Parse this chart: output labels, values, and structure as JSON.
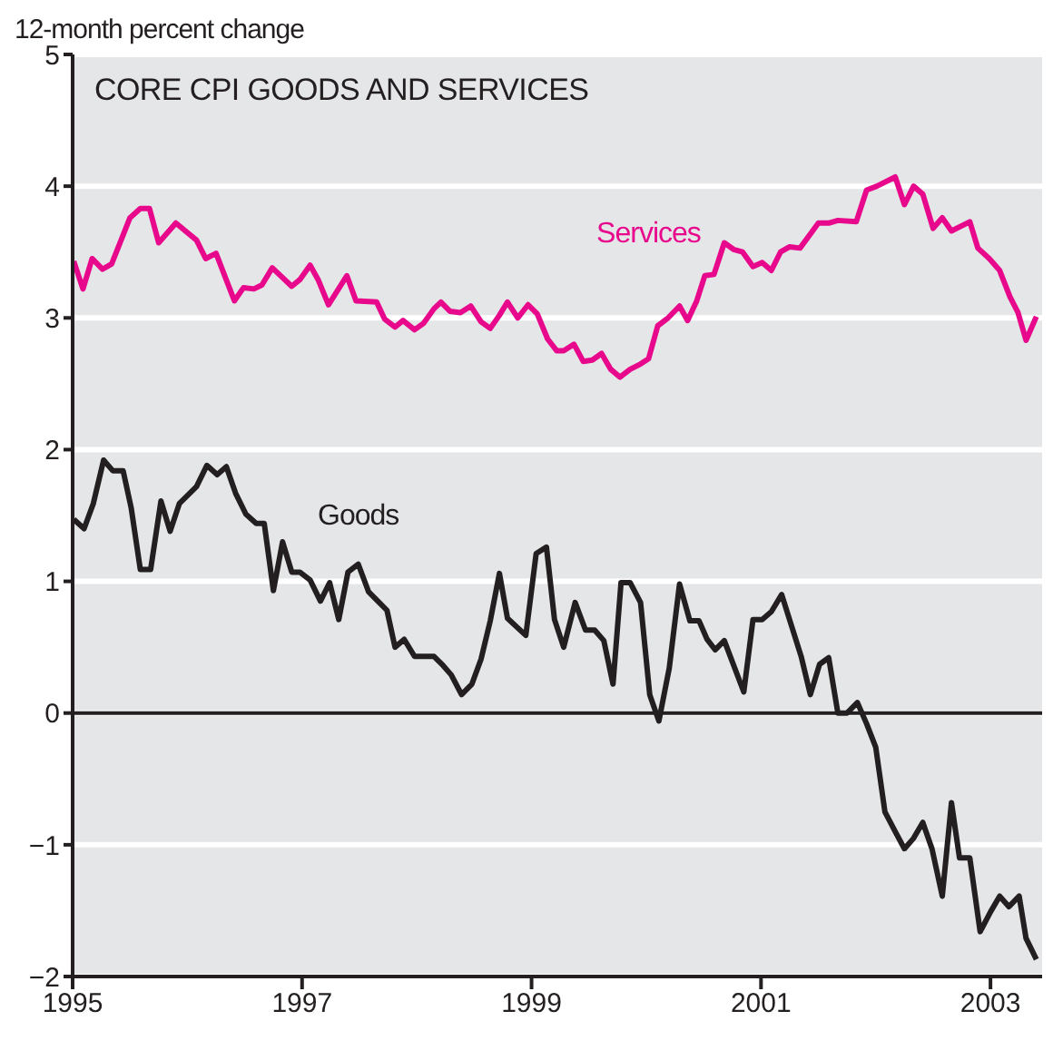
{
  "chart_data": {
    "type": "line",
    "title": "CORE CPI GOODS AND SERVICES",
    "ylabel": "12-month percent change",
    "xlim": [
      1995,
      2003.45
    ],
    "xticks": [
      1995,
      1997,
      1999,
      2001,
      2003
    ],
    "ylim": [
      -2,
      5
    ],
    "yticks": [
      -2,
      -1,
      0,
      1,
      2,
      3,
      4,
      5
    ],
    "grid": "y",
    "marker": "none",
    "line_style": "solid",
    "ref_lines": [
      {
        "axis": "y",
        "value": 0,
        "color": "#231f20"
      }
    ],
    "series": [
      {
        "name": "Services",
        "color": "#e8088c",
        "x": [
          1995.01,
          1995.09,
          1995.17,
          1995.26,
          1995.34,
          1995.5,
          1995.59,
          1995.67,
          1995.75,
          1995.9,
          1996.08,
          1996.16,
          1996.25,
          1996.41,
          1996.49,
          1996.58,
          1996.65,
          1996.74,
          1996.91,
          1996.98,
          1997.07,
          1997.14,
          1997.23,
          1997.39,
          1997.47,
          1997.65,
          1997.72,
          1997.81,
          1997.88,
          1997.98,
          1998.06,
          1998.15,
          1998.21,
          1998.29,
          1998.38,
          1998.47,
          1998.56,
          1998.64,
          1998.72,
          1998.79,
          1998.88,
          1998.97,
          1999.05,
          1999.14,
          1999.22,
          1999.28,
          1999.37,
          1999.45,
          1999.53,
          1999.61,
          1999.69,
          1999.77,
          1999.86,
          1999.95,
          2000.02,
          2000.1,
          2000.19,
          2000.29,
          2000.36,
          2000.44,
          2000.51,
          2000.59,
          2000.68,
          2000.76,
          2000.84,
          2000.93,
          2001.01,
          2001.09,
          2001.17,
          2001.25,
          2001.34,
          2001.5,
          2001.59,
          2001.67,
          2001.83,
          2001.92,
          2002.01,
          2002.17,
          2002.25,
          2002.33,
          2002.41,
          2002.5,
          2002.58,
          2002.66,
          2002.82,
          2002.89,
          2002.99,
          2003.08,
          2003.17,
          2003.24,
          2003.31,
          2003.4
        ],
        "values": [
          3.43,
          3.22,
          3.45,
          3.37,
          3.41,
          3.76,
          3.83,
          3.83,
          3.57,
          3.72,
          3.59,
          3.45,
          3.49,
          3.13,
          3.23,
          3.22,
          3.25,
          3.38,
          3.24,
          3.29,
          3.4,
          3.29,
          3.1,
          3.32,
          3.13,
          3.12,
          2.99,
          2.93,
          2.98,
          2.91,
          2.96,
          3.07,
          3.12,
          3.05,
          3.04,
          3.09,
          2.97,
          2.92,
          3.02,
          3.12,
          3,
          3.1,
          3.03,
          2.84,
          2.75,
          2.75,
          2.8,
          2.67,
          2.68,
          2.73,
          2.61,
          2.55,
          2.61,
          2.65,
          2.69,
          2.94,
          3,
          3.09,
          2.98,
          3.13,
          3.32,
          3.33,
          3.57,
          3.52,
          3.5,
          3.39,
          3.42,
          3.36,
          3.5,
          3.54,
          3.53,
          3.72,
          3.72,
          3.74,
          3.73,
          3.97,
          4,
          4.07,
          3.86,
          4,
          3.94,
          3.68,
          3.76,
          3.66,
          3.73,
          3.53,
          3.45,
          3.36,
          3.16,
          3.04,
          2.83,
          3.01
        ]
      },
      {
        "name": "Goods",
        "color": "#231f20",
        "x": [
          1995.01,
          1995.1,
          1995.18,
          1995.27,
          1995.35,
          1995.44,
          1995.51,
          1995.59,
          1995.68,
          1995.77,
          1995.85,
          1995.93,
          1996.08,
          1996.17,
          1996.26,
          1996.34,
          1996.42,
          1996.51,
          1996.6,
          1996.67,
          1996.75,
          1996.83,
          1996.91,
          1996.98,
          1997.07,
          1997.16,
          1997.24,
          1997.32,
          1997.4,
          1997.49,
          1997.58,
          1997.66,
          1997.74,
          1997.81,
          1997.89,
          1997.98,
          1998.15,
          1998.23,
          1998.3,
          1998.39,
          1998.48,
          1998.56,
          1998.64,
          1998.72,
          1998.79,
          1998.95,
          1999.04,
          1999.13,
          1999.2,
          1999.28,
          1999.38,
          1999.47,
          1999.55,
          1999.63,
          1999.71,
          1999.78,
          1999.86,
          1999.95,
          2000.03,
          2000.11,
          2000.2,
          2000.29,
          2000.38,
          2000.46,
          2000.53,
          2000.6,
          2000.68,
          2000.85,
          2000.93,
          2001.01,
          2001.09,
          2001.18,
          2001.35,
          2001.43,
          2001.51,
          2001.59,
          2001.67,
          2001.75,
          2001.84,
          2001.92,
          2002,
          2002.08,
          2002.17,
          2002.25,
          2002.33,
          2002.41,
          2002.49,
          2002.58,
          2002.66,
          2002.73,
          2002.82,
          2002.91,
          2003,
          2003.08,
          2003.16,
          2003.25,
          2003.31,
          2003.4
        ],
        "values": [
          1.47,
          1.4,
          1.59,
          1.92,
          1.84,
          1.84,
          1.56,
          1.09,
          1.09,
          1.61,
          1.38,
          1.59,
          1.72,
          1.88,
          1.81,
          1.87,
          1.67,
          1.51,
          1.44,
          1.44,
          0.93,
          1.3,
          1.07,
          1.07,
          1.01,
          0.85,
          0.99,
          0.71,
          1.07,
          1.13,
          0.92,
          0.85,
          0.78,
          0.5,
          0.56,
          0.43,
          0.43,
          0.36,
          0.29,
          0.14,
          0.22,
          0.41,
          0.7,
          1.06,
          0.72,
          0.59,
          1.21,
          1.26,
          0.71,
          0.5,
          0.84,
          0.63,
          0.63,
          0.55,
          0.22,
          0.99,
          0.99,
          0.84,
          0.14,
          -0.06,
          0.34,
          0.98,
          0.7,
          0.7,
          0.56,
          0.48,
          0.55,
          0.16,
          0.71,
          0.71,
          0.77,
          0.9,
          0.43,
          0.14,
          0.37,
          0.42,
          0,
          0,
          0.08,
          -0.08,
          -0.26,
          -0.75,
          -0.9,
          -1.03,
          -0.95,
          -0.83,
          -1.03,
          -1.39,
          -0.68,
          -1.1,
          -1.1,
          -1.66,
          -1.51,
          -1.39,
          -1.47,
          -1.39,
          -1.71,
          -1.87
        ]
      }
    ]
  }
}
